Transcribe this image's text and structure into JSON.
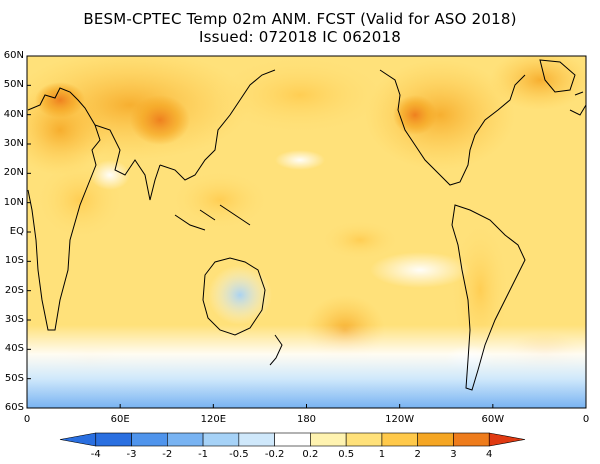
{
  "title": {
    "line1": "BESM-CPTEC Temp 02m ANM. FCST  (Valid for ASO 2018)",
    "line2": "Issued:  072018 IC 062018"
  },
  "map": {
    "lat_labels": [
      "60N",
      "50N",
      "40N",
      "30N",
      "20N",
      "10N",
      "EQ",
      "10S",
      "20S",
      "30S",
      "40S",
      "50S",
      "60S"
    ],
    "lat_values": [
      60,
      50,
      40,
      30,
      20,
      10,
      0,
      -10,
      -20,
      -30,
      -40,
      -50,
      -60
    ],
    "lon_labels": [
      "0",
      "60E",
      "120E",
      "180",
      "120W",
      "60W",
      "0"
    ],
    "lon_values": [
      0,
      60,
      120,
      180,
      240,
      300,
      360
    ],
    "land_color": "#000000",
    "regions": [
      {
        "name": "eurasia-warm",
        "lon": 90,
        "lat": 40,
        "value": 2.2
      },
      {
        "name": "tibet-hot",
        "lon": 85,
        "lat": 38,
        "value": 3.2
      },
      {
        "name": "north-america-warm",
        "lon": 265,
        "lat": 40,
        "value": 2.5
      },
      {
        "name": "north-pacific-warm",
        "lon": 190,
        "lat": 40,
        "value": 1.3
      },
      {
        "name": "africa-warm",
        "lon": 20,
        "lat": 15,
        "value": 1.6
      },
      {
        "name": "australia-cool",
        "lon": 135,
        "lat": -22,
        "value": -0.3
      },
      {
        "name": "south-pacific-warm",
        "lon": 200,
        "lat": -35,
        "value": 1.4
      },
      {
        "name": "south-america-warm",
        "lon": 295,
        "lat": -25,
        "value": 1.5
      },
      {
        "name": "southern-ocean-cold",
        "lon": 180,
        "lat": -55,
        "value": -0.8
      },
      {
        "name": "east-pacific-cool",
        "lon": 255,
        "lat": -5,
        "value": 0.1
      }
    ]
  },
  "colorbar": {
    "labels": [
      "-4",
      "-3",
      "-2",
      "-1",
      "-0.5",
      "-0.2",
      "0.2",
      "0.5",
      "1",
      "2",
      "3",
      "4"
    ],
    "colors": [
      "#2a6fe0",
      "#4f94ec",
      "#78b3f2",
      "#a6d2f7",
      "#cfe8fb",
      "#ffffff",
      "#fff3b0",
      "#ffe17a",
      "#ffc94a",
      "#f5a623",
      "#ee7c1c",
      "#e03a12"
    ]
  }
}
